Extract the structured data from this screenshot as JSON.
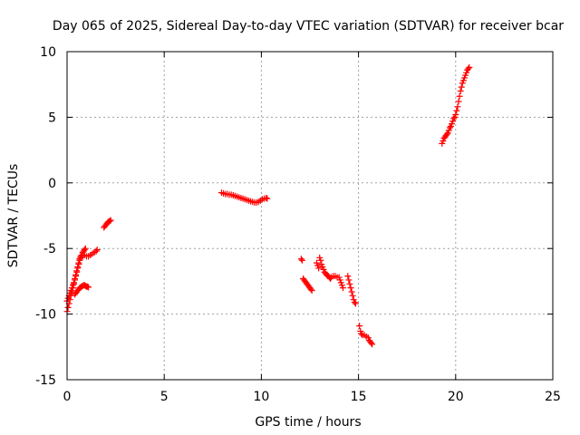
{
  "chart_data": {
    "type": "scatter",
    "title": "Day 065 of 2025, Sidereal Day-to-day VTEC variation (SDTVAR) for receiver bcar",
    "xlabel": "GPS time / hours",
    "ylabel": "SDTVAR / TECUs",
    "xlim": [
      0,
      25
    ],
    "ylim": [
      -15,
      10
    ],
    "x_ticks": [
      0,
      5,
      10,
      15,
      20,
      25
    ],
    "y_ticks": [
      -15,
      -10,
      -5,
      0,
      5,
      10
    ],
    "x_tick_labels": [
      "0",
      "5",
      "10",
      "15",
      "20",
      "25"
    ],
    "y_tick_labels": [
      "-15",
      "-10",
      "-5",
      "0",
      "5",
      "10"
    ],
    "grid": true,
    "marker": "plus",
    "color": "#ff0000",
    "series": [
      {
        "points": [
          [
            0.0,
            -9.8
          ],
          [
            0.05,
            -9.5
          ],
          [
            0.1,
            -9.2
          ],
          [
            0.15,
            -8.9
          ],
          [
            0.2,
            -8.6
          ],
          [
            0.25,
            -8.3
          ],
          [
            0.3,
            -8.0
          ],
          [
            0.35,
            -7.7
          ],
          [
            0.4,
            -7.4
          ],
          [
            0.45,
            -7.1
          ],
          [
            0.5,
            -6.8
          ],
          [
            0.55,
            -6.5
          ],
          [
            0.6,
            -6.2
          ],
          [
            0.65,
            -5.9
          ],
          [
            0.7,
            -5.7
          ],
          [
            0.75,
            -5.5
          ],
          [
            0.8,
            -5.3
          ],
          [
            0.85,
            -5.2
          ],
          [
            0.9,
            -5.1
          ],
          [
            0.95,
            -5.0
          ],
          [
            0.0,
            -9.0
          ],
          [
            0.05,
            -8.8
          ],
          [
            0.1,
            -8.6
          ],
          [
            0.15,
            -8.4
          ],
          [
            0.2,
            -8.2
          ],
          [
            0.25,
            -8.0
          ],
          [
            0.3,
            -7.8
          ],
          [
            0.35,
            -7.6
          ],
          [
            0.4,
            -7.3
          ],
          [
            0.45,
            -7.0
          ],
          [
            0.5,
            -6.7
          ],
          [
            0.55,
            -6.4
          ],
          [
            0.6,
            -6.1
          ],
          [
            0.65,
            -5.8
          ],
          [
            0.7,
            -5.6
          ],
          [
            0.4,
            -8.5
          ],
          [
            0.45,
            -8.4
          ],
          [
            0.5,
            -8.3
          ],
          [
            0.55,
            -8.2
          ],
          [
            0.6,
            -8.1
          ],
          [
            0.65,
            -8.0
          ],
          [
            0.7,
            -7.95
          ],
          [
            0.75,
            -7.9
          ],
          [
            0.8,
            -7.85
          ],
          [
            0.85,
            -7.8
          ],
          [
            0.9,
            -7.8
          ],
          [
            0.95,
            -7.85
          ],
          [
            1.0,
            -7.9
          ],
          [
            1.05,
            -7.9
          ],
          [
            1.1,
            -7.95
          ],
          [
            0.8,
            -5.6
          ],
          [
            0.9,
            -5.5
          ],
          [
            1.0,
            -5.6
          ],
          [
            1.1,
            -5.6
          ],
          [
            1.2,
            -5.5
          ],
          [
            1.3,
            -5.4
          ],
          [
            1.4,
            -5.3
          ],
          [
            1.5,
            -5.2
          ],
          [
            1.55,
            -5.1
          ],
          [
            1.9,
            -3.4
          ],
          [
            1.95,
            -3.3
          ],
          [
            2.0,
            -3.2
          ],
          [
            2.05,
            -3.1
          ],
          [
            2.1,
            -3.0
          ],
          [
            2.15,
            -2.95
          ],
          [
            2.2,
            -2.9
          ],
          [
            2.25,
            -2.85
          ]
        ]
      },
      {
        "points": [
          [
            7.95,
            -0.75
          ],
          [
            8.05,
            -0.8
          ],
          [
            8.15,
            -0.85
          ],
          [
            8.25,
            -0.85
          ],
          [
            8.35,
            -0.9
          ],
          [
            8.45,
            -0.9
          ],
          [
            8.55,
            -0.95
          ],
          [
            8.65,
            -1.0
          ],
          [
            8.75,
            -1.05
          ],
          [
            8.85,
            -1.1
          ],
          [
            8.95,
            -1.15
          ],
          [
            9.05,
            -1.2
          ],
          [
            9.15,
            -1.25
          ],
          [
            9.25,
            -1.3
          ],
          [
            9.35,
            -1.35
          ],
          [
            9.45,
            -1.4
          ],
          [
            9.55,
            -1.45
          ],
          [
            9.65,
            -1.5
          ],
          [
            9.75,
            -1.5
          ],
          [
            9.85,
            -1.45
          ],
          [
            9.95,
            -1.35
          ],
          [
            10.05,
            -1.25
          ],
          [
            10.15,
            -1.2
          ],
          [
            10.25,
            -1.15
          ],
          [
            10.3,
            -1.2
          ]
        ]
      },
      {
        "points": [
          [
            12.05,
            -5.8
          ],
          [
            12.1,
            -5.9
          ],
          [
            12.15,
            -7.3
          ],
          [
            12.2,
            -7.4
          ],
          [
            12.25,
            -7.5
          ],
          [
            12.3,
            -7.6
          ],
          [
            12.35,
            -7.7
          ],
          [
            12.4,
            -7.8
          ],
          [
            12.45,
            -7.9
          ],
          [
            12.5,
            -8.0
          ],
          [
            12.55,
            -8.1
          ],
          [
            12.6,
            -8.2
          ],
          [
            12.85,
            -6.1
          ],
          [
            12.9,
            -6.3
          ],
          [
            12.95,
            -6.5
          ],
          [
            13.0,
            -5.7
          ],
          [
            13.05,
            -5.9
          ],
          [
            13.1,
            -6.2
          ],
          [
            13.15,
            -6.4
          ],
          [
            13.2,
            -6.6
          ],
          [
            13.25,
            -6.8
          ],
          [
            13.3,
            -6.9
          ],
          [
            13.35,
            -7.0
          ],
          [
            13.4,
            -7.05
          ],
          [
            13.45,
            -7.1
          ],
          [
            13.5,
            -7.2
          ],
          [
            13.55,
            -7.3
          ],
          [
            13.6,
            -7.2
          ],
          [
            13.7,
            -7.1
          ],
          [
            13.8,
            -7.1
          ],
          [
            13.9,
            -7.2
          ],
          [
            14.0,
            -7.2
          ],
          [
            14.05,
            -7.4
          ],
          [
            14.1,
            -7.6
          ],
          [
            14.15,
            -7.8
          ],
          [
            14.2,
            -8.0
          ],
          [
            14.45,
            -7.1
          ],
          [
            14.5,
            -7.4
          ],
          [
            14.55,
            -7.7
          ],
          [
            14.6,
            -8.0
          ],
          [
            14.65,
            -8.3
          ],
          [
            14.7,
            -8.6
          ],
          [
            14.75,
            -8.9
          ],
          [
            14.8,
            -9.1
          ],
          [
            14.85,
            -9.2
          ],
          [
            15.05,
            -10.9
          ],
          [
            15.1,
            -11.3
          ],
          [
            15.15,
            -11.5
          ],
          [
            15.2,
            -11.6
          ],
          [
            15.3,
            -11.6
          ],
          [
            15.4,
            -11.7
          ],
          [
            15.5,
            -11.8
          ],
          [
            15.55,
            -12.0
          ],
          [
            15.6,
            -12.1
          ],
          [
            15.65,
            -12.2
          ],
          [
            15.7,
            -12.3
          ]
        ]
      },
      {
        "points": [
          [
            19.3,
            3.0
          ],
          [
            19.35,
            3.2
          ],
          [
            19.4,
            3.4
          ],
          [
            19.45,
            3.5
          ],
          [
            19.5,
            3.6
          ],
          [
            19.55,
            3.7
          ],
          [
            19.6,
            3.8
          ],
          [
            19.65,
            4.0
          ],
          [
            19.7,
            4.2
          ],
          [
            19.75,
            4.3
          ],
          [
            19.8,
            4.5
          ],
          [
            19.85,
            4.7
          ],
          [
            19.9,
            4.9
          ],
          [
            19.95,
            5.0
          ],
          [
            20.0,
            5.2
          ],
          [
            20.05,
            5.5
          ],
          [
            20.1,
            5.8
          ],
          [
            20.15,
            6.2
          ],
          [
            20.2,
            6.6
          ],
          [
            20.25,
            7.0
          ],
          [
            20.3,
            7.3
          ],
          [
            20.35,
            7.6
          ],
          [
            20.4,
            7.8
          ],
          [
            20.45,
            8.0
          ],
          [
            20.5,
            8.2
          ],
          [
            20.55,
            8.4
          ],
          [
            20.6,
            8.6
          ],
          [
            20.65,
            8.7
          ],
          [
            20.7,
            8.8
          ]
        ]
      }
    ]
  }
}
